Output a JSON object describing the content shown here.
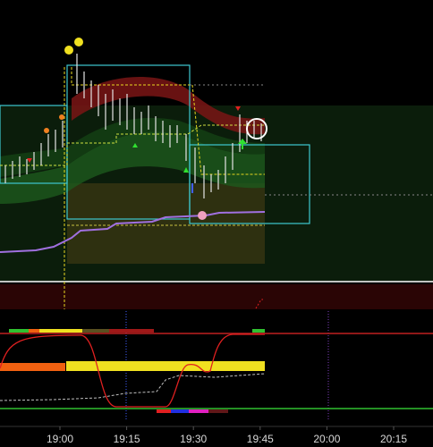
{
  "chart_data": {
    "type": "candlestick",
    "x": [
      "19:00",
      "19:15",
      "19:30",
      "19:45",
      "20:00",
      "20:15"
    ]
  }
}
